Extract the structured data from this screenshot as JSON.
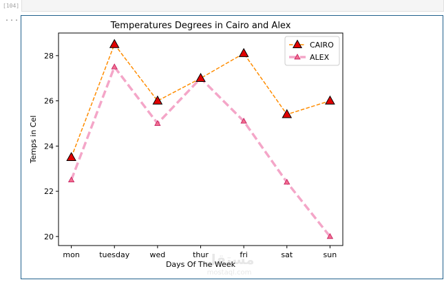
{
  "notebook": {
    "input_prompt": "[104]",
    "output_prompt": "..."
  },
  "watermark": {
    "text_ar": "مستقل",
    "text_en": "mostaql.com"
  },
  "chart_data": {
    "type": "line",
    "title": "Temperatures Degrees in Cairo and Alex",
    "xlabel": "Days Of The Week",
    "ylabel": "Temps in Cel",
    "categories": [
      "mon",
      "tuesday",
      "wed",
      "thur",
      "fri",
      "sat",
      "sun"
    ],
    "ylim": [
      19.6,
      29.0
    ],
    "yticks": [
      20,
      22,
      24,
      26,
      28
    ],
    "grid": false,
    "legend_position": "top-right",
    "series": [
      {
        "name": "CAIRO",
        "values": [
          23.5,
          28.5,
          26.0,
          27.0,
          28.1,
          25.4,
          26.0
        ],
        "color": "#ff8c00",
        "marker_color": "#e00000",
        "marker_edge": "#000000"
      },
      {
        "name": "ALEX",
        "values": [
          22.5,
          27.5,
          25.0,
          27.0,
          25.1,
          22.4,
          20.0
        ],
        "color": "#f4a6c8",
        "marker_color": "#f26d8f",
        "marker_edge": "#c2185b"
      }
    ]
  }
}
